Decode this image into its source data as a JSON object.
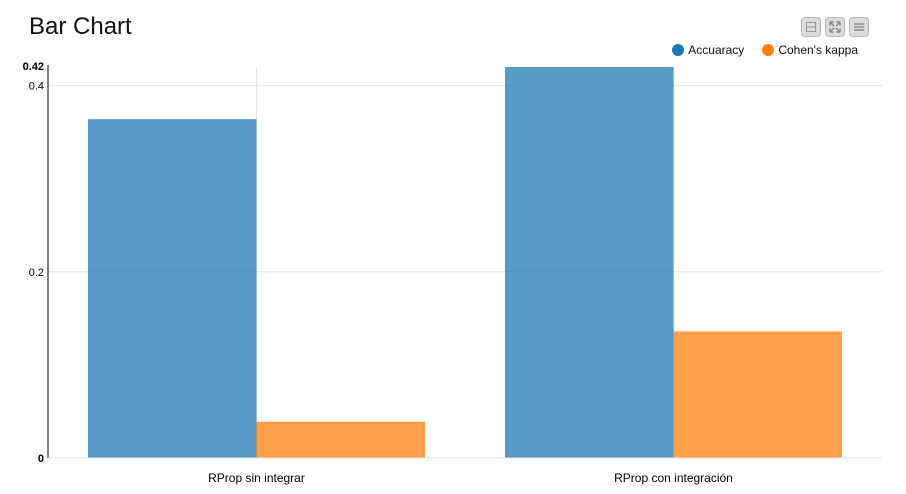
{
  "title": "Bar Chart",
  "toolbar": {
    "buttons": [
      {
        "name": "minimize-button",
        "icon": "minimize-icon"
      },
      {
        "name": "fullscreen-button",
        "icon": "expand-icon"
      },
      {
        "name": "menu-button",
        "icon": "menu-icon"
      }
    ]
  },
  "chart_data": {
    "type": "bar",
    "title": "Bar Chart",
    "categories": [
      "RProp sin integrar",
      "RProp con integración"
    ],
    "series": [
      {
        "name": "Accuaracy",
        "color": "#1f77b4",
        "values": [
          0.364,
          0.42
        ]
      },
      {
        "name": "Cohen's kappa",
        "color": "#ff7f0e",
        "values": [
          0.039,
          0.136
        ]
      }
    ],
    "ylim": [
      0,
      0.42
    ],
    "yticks": [
      "0",
      "0.2",
      "0.4"
    ],
    "ymax_label": "0.42",
    "ymin_label": "0",
    "xlabel": "",
    "ylabel": "",
    "grid": true,
    "legend_position": "top-right"
  }
}
